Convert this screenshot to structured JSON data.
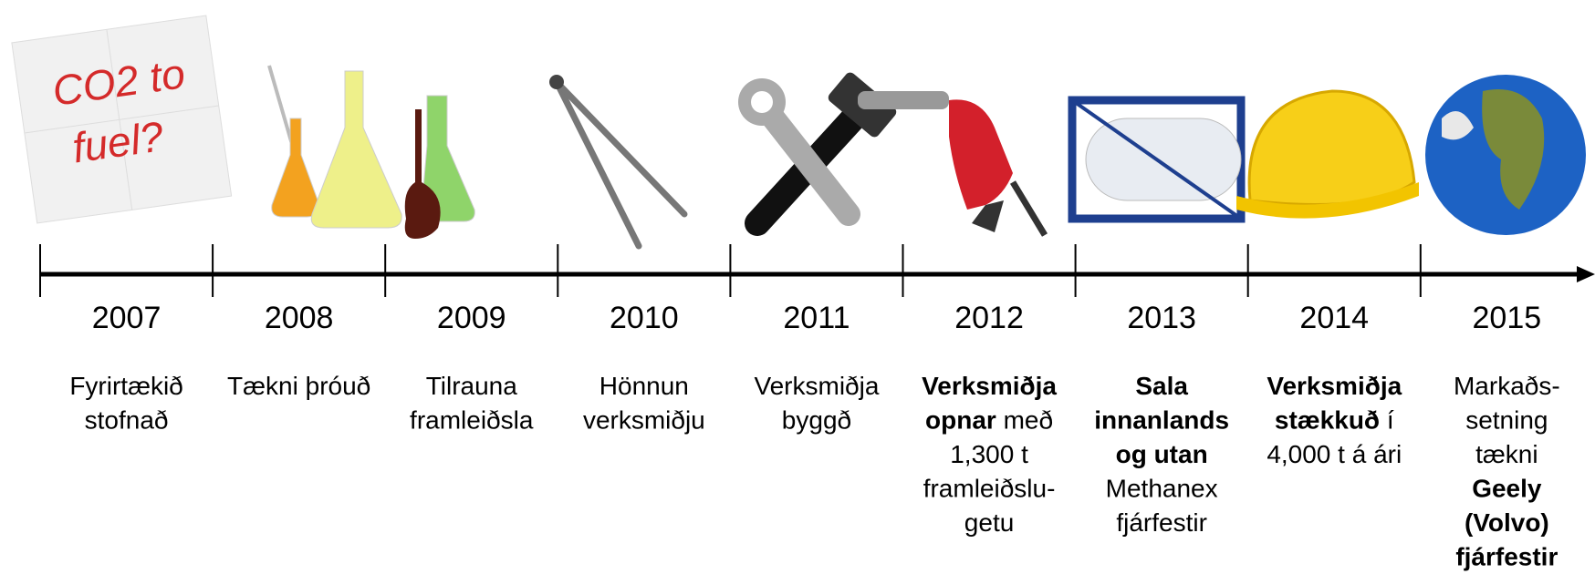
{
  "napkin": {
    "lines": [
      "CO2 to",
      "fuel?"
    ]
  },
  "events": [
    {
      "year": "2007",
      "lines": [
        [
          {
            "text": "Fyrirtækið"
          }
        ],
        [
          {
            "text": "stofnað"
          }
        ]
      ]
    },
    {
      "year": "2008",
      "lines": [
        [
          {
            "text": "Tækni þróuð"
          }
        ]
      ]
    },
    {
      "year": "2009",
      "lines": [
        [
          {
            "text": "Tilrauna"
          }
        ],
        [
          {
            "text": "framleiðsla"
          }
        ]
      ]
    },
    {
      "year": "2010",
      "lines": [
        [
          {
            "text": "Hönnun"
          }
        ],
        [
          {
            "text": "verksmiðju"
          }
        ]
      ]
    },
    {
      "year": "2011",
      "lines": [
        [
          {
            "text": "Verksmiðja"
          }
        ],
        [
          {
            "text": "byggð"
          }
        ]
      ]
    },
    {
      "year": "2012",
      "lines": [
        [
          {
            "text": "Verksmiðja",
            "bold": true
          }
        ],
        [
          {
            "text": "opnar",
            "bold": true
          },
          {
            "text": " með"
          }
        ],
        [
          {
            "text": "1,300 t"
          }
        ],
        [
          {
            "text": "framleiðslu-"
          }
        ],
        [
          {
            "text": "getu"
          }
        ]
      ]
    },
    {
      "year": "2013",
      "lines": [
        [
          {
            "text": "Sala",
            "bold": true
          }
        ],
        [
          {
            "text": "innanlands",
            "bold": true
          }
        ],
        [
          {
            "text": "og utan",
            "bold": true
          }
        ],
        [
          {
            "text": "Methanex"
          }
        ],
        [
          {
            "text": "fjárfestir"
          }
        ]
      ]
    },
    {
      "year": "2014",
      "lines": [
        [
          {
            "text": "Verksmiðja",
            "bold": true
          }
        ],
        [
          {
            "text": "stækkuð",
            "bold": true
          },
          {
            "text": " í"
          }
        ],
        [
          {
            "text": "4,000 t á ári"
          }
        ]
      ]
    },
    {
      "year": "2015",
      "lines": [
        [
          {
            "text": "Markaðs-"
          }
        ],
        [
          {
            "text": "setning"
          }
        ],
        [
          {
            "text": "tækni"
          }
        ],
        [
          {
            "text": "Geely",
            "bold": true
          }
        ],
        [
          {
            "text": "(Volvo)",
            "bold": true
          }
        ],
        [
          {
            "text": "fjárfestir",
            "bold": true
          }
        ]
      ]
    }
  ]
}
